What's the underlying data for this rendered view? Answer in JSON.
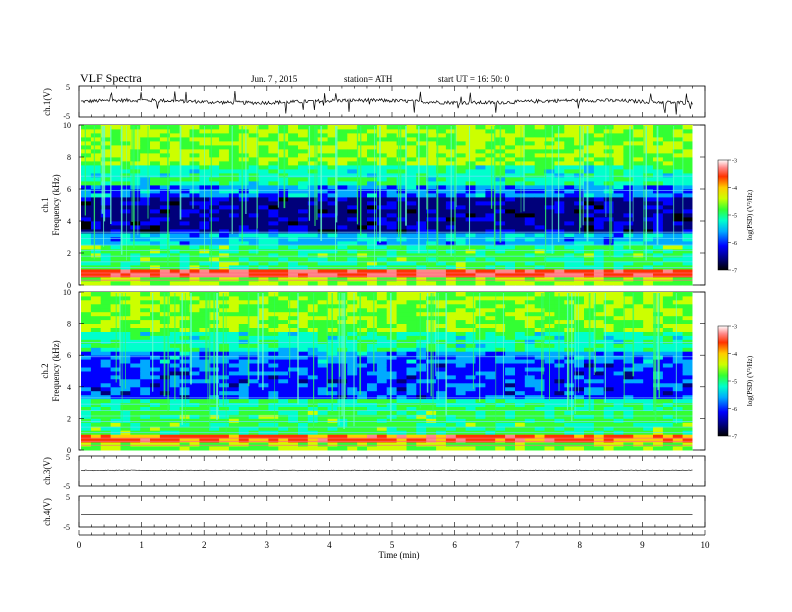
{
  "header": {
    "title": "VLF Spectra",
    "date": "Jun. 7 , 2015",
    "station": "station= ATH",
    "start": "start UT = 16: 50: 0"
  },
  "chart_data": [
    {
      "type": "line",
      "ylabel": "ch.1(V)",
      "ylim": [
        -5,
        5
      ],
      "yticks": [
        "5",
        "-5"
      ],
      "baseline": 0.0,
      "noise": "high",
      "colors": {
        "line": "#000000"
      }
    },
    {
      "type": "heatmap",
      "ylabel": "ch.1\nFrequency (kHz)",
      "ylabel_line1": "ch.1",
      "ylabel_line2": "Frequency (kHz)",
      "ylim": [
        0,
        10
      ],
      "yticks": [
        "0",
        "2",
        "4",
        "6",
        "8",
        "10"
      ],
      "colorbar": {
        "label": "log(PSD) (V²/Hz)",
        "range": [
          -7,
          -3
        ],
        "ticks": [
          "-3",
          "-4",
          "-5",
          "-6",
          "-7"
        ]
      }
    },
    {
      "type": "heatmap",
      "ylabel": "ch.2\nFrequency (kHz)",
      "ylabel_line1": "ch.2",
      "ylabel_line2": "Frequency (kHz)",
      "ylim": [
        0,
        10
      ],
      "yticks": [
        "0",
        "2",
        "4",
        "6",
        "8",
        "10"
      ],
      "colorbar": {
        "label": "log(PSD) (V²/Hz)",
        "range": [
          -7,
          -3
        ],
        "ticks": [
          "-3",
          "-4",
          "-5",
          "-6",
          "-7"
        ]
      }
    },
    {
      "type": "line",
      "ylabel": "ch.3(V)",
      "ylim": [
        -5,
        5
      ],
      "yticks": [
        "5",
        "-5"
      ],
      "baseline": 0.2,
      "noise": "low",
      "colors": {
        "line": "#000000"
      }
    },
    {
      "type": "line",
      "ylabel": "ch.4(V)",
      "ylim": [
        -5,
        5
      ],
      "yticks": [
        "5",
        "-5"
      ],
      "baseline": -1.0,
      "noise": "none",
      "colors": {
        "line": "#000000"
      }
    }
  ],
  "x_axis": {
    "xlabel": "Time (min)",
    "xlim": [
      0,
      10
    ],
    "data_end": 9.8,
    "ticks": [
      "0",
      "1",
      "2",
      "3",
      "4",
      "5",
      "6",
      "7",
      "8",
      "9",
      "10"
    ]
  },
  "colormap": [
    "#000000",
    "#00007a",
    "#0000ff",
    "#00aaff",
    "#00ffcc",
    "#33ff33",
    "#ccff00",
    "#ffcc00",
    "#ff3300",
    "#ff8888",
    "#ffffff"
  ]
}
